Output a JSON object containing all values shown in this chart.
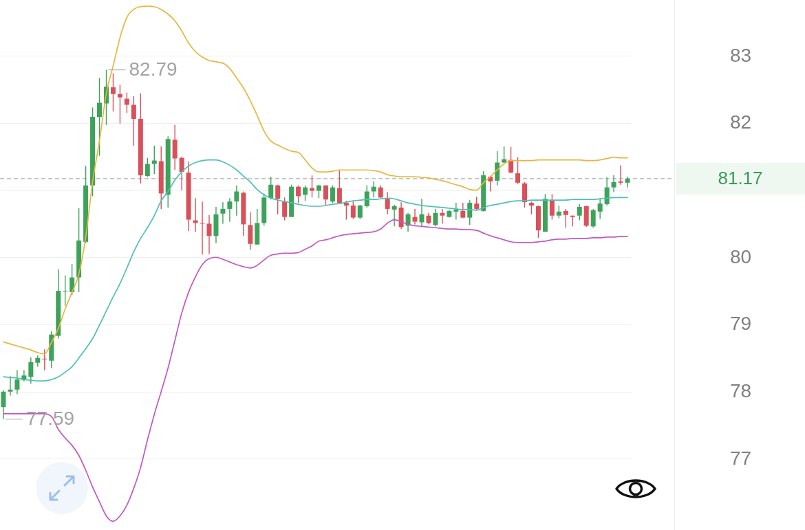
{
  "chart_data": {
    "type": "candlestick",
    "categories": [
      null,
      null,
      null,
      null,
      null,
      null,
      null,
      null,
      null,
      null,
      null,
      null,
      null,
      null,
      null,
      null,
      null,
      null,
      null,
      null,
      null,
      null,
      null,
      null,
      null,
      null,
      null,
      null,
      null,
      null,
      null,
      null,
      null,
      null,
      null,
      null,
      null,
      null,
      null,
      null,
      null,
      null,
      null,
      null,
      null,
      null,
      null,
      null,
      null,
      null,
      null,
      null,
      null,
      null,
      null,
      null,
      null,
      null,
      null,
      null,
      null,
      null,
      null,
      null,
      null,
      null,
      null,
      null,
      null,
      null,
      null,
      null,
      null,
      null,
      null,
      null,
      null,
      null,
      null,
      null,
      null,
      null,
      null,
      null,
      null,
      null,
      null,
      null,
      null,
      null,
      null,
      null
    ],
    "ohlc": [
      [
        77.77,
        78.02,
        77.59,
        78.0
      ],
      [
        78.0,
        78.23,
        77.94,
        78.03
      ],
      [
        78.03,
        78.32,
        77.96,
        78.18
      ],
      [
        78.17,
        78.32,
        78.15,
        78.24
      ],
      [
        78.22,
        78.51,
        78.12,
        78.44
      ],
      [
        78.43,
        78.54,
        78.37,
        78.5
      ],
      [
        78.49,
        78.63,
        78.32,
        78.48
      ],
      [
        78.46,
        78.9,
        78.35,
        78.85
      ],
      [
        78.83,
        79.82,
        78.79,
        79.5
      ],
      [
        79.49,
        79.73,
        79.28,
        79.5
      ],
      [
        79.48,
        79.9,
        79.44,
        79.7
      ],
      [
        79.7,
        80.73,
        79.48,
        80.25
      ],
      [
        80.23,
        81.36,
        80.21,
        81.07
      ],
      [
        81.07,
        82.23,
        80.91,
        82.09
      ],
      [
        82.09,
        82.67,
        81.51,
        82.3
      ],
      [
        82.29,
        82.79,
        81.97,
        82.54
      ],
      [
        82.53,
        82.74,
        82.17,
        82.43
      ],
      [
        82.43,
        82.57,
        81.99,
        82.38
      ],
      [
        82.36,
        82.45,
        82.15,
        82.27
      ],
      [
        82.27,
        82.4,
        81.66,
        82.06
      ],
      [
        82.06,
        82.44,
        81.1,
        81.22
      ],
      [
        81.21,
        81.48,
        81.2,
        81.39
      ],
      [
        81.39,
        81.66,
        81.24,
        81.44
      ],
      [
        81.43,
        81.65,
        80.72,
        80.95
      ],
      [
        80.93,
        81.8,
        80.74,
        81.76
      ],
      [
        81.75,
        81.97,
        81.3,
        81.47
      ],
      [
        81.48,
        81.5,
        81.0,
        81.27
      ],
      [
        81.26,
        81.43,
        80.39,
        80.56
      ],
      [
        80.55,
        80.88,
        80.38,
        80.51
      ],
      [
        80.51,
        80.83,
        80.04,
        80.5
      ],
      [
        80.5,
        80.63,
        80.05,
        80.32
      ],
      [
        80.32,
        80.75,
        80.21,
        80.64
      ],
      [
        80.65,
        80.82,
        80.5,
        80.72
      ],
      [
        80.72,
        80.88,
        80.53,
        80.83
      ],
      [
        80.83,
        81.07,
        80.62,
        80.98
      ],
      [
        80.96,
        80.98,
        80.32,
        80.49
      ],
      [
        80.48,
        80.67,
        80.11,
        80.2
      ],
      [
        80.19,
        80.72,
        80.19,
        80.51
      ],
      [
        80.51,
        80.95,
        80.47,
        80.89
      ],
      [
        80.88,
        81.2,
        80.86,
        81.08
      ],
      [
        81.07,
        81.08,
        80.64,
        80.87
      ],
      [
        80.83,
        80.89,
        80.55,
        80.6
      ],
      [
        80.6,
        81.08,
        80.6,
        81.05
      ],
      [
        81.05,
        81.07,
        80.81,
        80.91
      ],
      [
        80.93,
        81.07,
        80.84,
        81.04
      ],
      [
        81.03,
        81.22,
        80.89,
        80.99
      ],
      [
        80.99,
        81.08,
        80.88,
        81.07
      ],
      [
        81.07,
        81.07,
        80.78,
        80.86
      ],
      [
        80.83,
        81.07,
        80.81,
        81.04
      ],
      [
        81.03,
        81.29,
        80.8,
        80.81
      ],
      [
        80.81,
        80.84,
        80.56,
        80.77
      ],
      [
        80.77,
        80.83,
        80.57,
        80.59
      ],
      [
        80.59,
        80.78,
        80.57,
        80.77
      ],
      [
        80.76,
        81.07,
        80.74,
        80.98
      ],
      [
        80.98,
        81.13,
        80.89,
        81.05
      ],
      [
        81.04,
        81.07,
        80.88,
        80.89
      ],
      [
        80.87,
        80.97,
        80.64,
        80.72
      ],
      [
        80.71,
        80.78,
        80.46,
        80.76
      ],
      [
        80.74,
        80.82,
        80.42,
        80.45
      ],
      [
        80.47,
        80.66,
        80.38,
        80.64
      ],
      [
        80.6,
        80.72,
        80.49,
        80.53
      ],
      [
        80.52,
        80.87,
        80.46,
        80.64
      ],
      [
        80.62,
        80.66,
        80.49,
        80.51
      ],
      [
        80.48,
        80.72,
        80.46,
        80.66
      ],
      [
        80.66,
        80.72,
        80.5,
        80.62
      ],
      [
        80.6,
        80.7,
        80.59,
        80.69
      ],
      [
        80.68,
        80.81,
        80.56,
        80.71
      ],
      [
        80.69,
        80.81,
        80.58,
        80.59
      ],
      [
        80.59,
        80.85,
        80.48,
        80.81
      ],
      [
        80.8,
        80.9,
        80.7,
        80.72
      ],
      [
        80.69,
        81.28,
        80.68,
        81.22
      ],
      [
        81.2,
        81.21,
        80.98,
        81.13
      ],
      [
        81.14,
        81.58,
        81.07,
        81.41
      ],
      [
        81.41,
        81.65,
        81.4,
        81.46
      ],
      [
        81.45,
        81.64,
        81.25,
        81.26
      ],
      [
        81.25,
        81.49,
        81.09,
        81.11
      ],
      [
        81.1,
        81.12,
        80.74,
        80.82
      ],
      [
        80.81,
        80.83,
        80.64,
        80.77
      ],
      [
        80.76,
        80.77,
        80.29,
        80.4
      ],
      [
        80.38,
        80.94,
        80.38,
        80.87
      ],
      [
        80.85,
        80.94,
        80.56,
        80.62
      ],
      [
        80.62,
        80.77,
        80.58,
        80.68
      ],
      [
        80.69,
        80.72,
        80.44,
        80.63
      ],
      [
        80.62,
        80.62,
        80.46,
        80.6
      ],
      [
        80.62,
        80.79,
        80.55,
        80.75
      ],
      [
        80.76,
        80.77,
        80.45,
        80.47
      ],
      [
        80.46,
        80.72,
        80.44,
        80.7
      ],
      [
        80.68,
        80.88,
        80.57,
        80.8
      ],
      [
        80.79,
        81.19,
        80.77,
        81.04
      ],
      [
        81.04,
        81.22,
        80.97,
        81.12
      ],
      [
        81.13,
        81.37,
        81.08,
        81.11
      ],
      [
        81.11,
        81.2,
        81.04,
        81.17
      ]
    ],
    "colors": [
      "#3da35a",
      "#3da35a",
      "#3da35a",
      "#3da35a",
      "#3da35a",
      "#3da35a",
      "#d9505b",
      "#3da35a",
      "#3da35a",
      "#3da35a",
      "#3da35a",
      "#3da35a",
      "#3da35a",
      "#3da35a",
      "#3da35a",
      "#3da35a",
      "#d9505b",
      "#d9505b",
      "#d9505b",
      "#d9505b",
      "#d9505b",
      "#3da35a",
      "#3da35a",
      "#d9505b",
      "#3da35a",
      "#d9505b",
      "#d9505b",
      "#d9505b",
      "#d9505b",
      "#d9505b",
      "#d9505b",
      "#3da35a",
      "#3da35a",
      "#3da35a",
      "#3da35a",
      "#d9505b",
      "#d9505b",
      "#3da35a",
      "#3da35a",
      "#3da35a",
      "#d9505b",
      "#d9505b",
      "#3da35a",
      "#d9505b",
      "#3da35a",
      "#d9505b",
      "#3da35a",
      "#d9505b",
      "#3da35a",
      "#d9505b",
      "#d9505b",
      "#d9505b",
      "#3da35a",
      "#3da35a",
      "#3da35a",
      "#d9505b",
      "#d9505b",
      "#3da35a",
      "#d9505b",
      "#3da35a",
      "#d9505b",
      "#3da35a",
      "#d9505b",
      "#3da35a",
      "#d9505b",
      "#3da35a",
      "#3da35a",
      "#d9505b",
      "#3da35a",
      "#d9505b",
      "#3da35a",
      "#d9505b",
      "#3da35a",
      "#3da35a",
      "#d9505b",
      "#d9505b",
      "#d9505b",
      "#d9505b",
      "#d9505b",
      "#3da35a",
      "#d9505b",
      "#3da35a",
      "#d9505b",
      "#d9505b",
      "#3da35a",
      "#d9505b",
      "#3da35a",
      "#3da35a",
      "#3da35a",
      "#3da35a",
      "#d9505b",
      "#3da35a"
    ],
    "series": [
      {
        "type": "line",
        "color": "#e8b63c",
        "values": [
          78.74,
          78.71,
          78.68,
          78.65,
          78.62,
          78.58,
          78.56,
          78.73,
          78.94,
          79.23,
          79.48,
          79.75,
          80.3,
          81.12,
          81.73,
          82.44,
          82.85,
          83.27,
          83.57,
          83.69,
          83.73,
          83.74,
          83.73,
          83.69,
          83.62,
          83.52,
          83.37,
          83.19,
          83.06,
          82.98,
          82.93,
          82.91,
          82.89,
          82.81,
          82.67,
          82.52,
          82.33,
          82.11,
          81.88,
          81.73,
          81.67,
          81.62,
          81.58,
          81.56,
          81.45,
          81.33,
          81.27,
          81.27,
          81.28,
          81.3,
          81.3,
          81.3,
          81.3,
          81.3,
          81.29,
          81.27,
          81.23,
          81.21,
          81.2,
          81.2,
          81.2,
          81.19,
          81.18,
          81.16,
          81.14,
          81.11,
          81.08,
          81.05,
          81.01,
          81.0,
          81.11,
          81.2,
          81.3,
          81.39,
          81.44,
          81.44,
          81.44,
          81.44,
          81.45,
          81.45,
          81.45,
          81.45,
          81.45,
          81.45,
          81.45,
          81.44,
          81.44,
          81.45,
          81.47,
          81.49,
          81.48,
          81.48
        ]
      },
      {
        "type": "line",
        "color": "#4dc0b5",
        "values": [
          78.22,
          78.21,
          78.2,
          78.18,
          78.17,
          78.16,
          78.16,
          78.18,
          78.22,
          78.29,
          78.37,
          78.5,
          78.64,
          78.79,
          78.99,
          79.2,
          79.41,
          79.61,
          79.84,
          80.08,
          80.28,
          80.44,
          80.62,
          80.84,
          80.98,
          81.15,
          81.27,
          81.36,
          81.41,
          81.44,
          81.45,
          81.45,
          81.42,
          81.37,
          81.3,
          81.21,
          81.12,
          81.01,
          80.93,
          80.88,
          80.85,
          80.83,
          80.81,
          80.79,
          80.77,
          80.76,
          80.76,
          80.77,
          80.79,
          80.8,
          80.82,
          80.84,
          80.85,
          80.86,
          80.86,
          80.87,
          80.88,
          80.87,
          80.84,
          80.81,
          80.79,
          80.77,
          80.76,
          80.75,
          80.74,
          80.73,
          80.72,
          80.71,
          80.71,
          80.7,
          80.74,
          80.77,
          80.79,
          80.81,
          80.83,
          80.84,
          80.84,
          80.85,
          80.85,
          80.85,
          80.85,
          80.85,
          80.85,
          80.86,
          80.86,
          80.86,
          80.86,
          80.87,
          80.88,
          80.89,
          80.89,
          80.89
        ]
      },
      {
        "type": "line",
        "color": "#c457c4",
        "values": [
          77.67,
          77.67,
          77.67,
          77.67,
          77.67,
          77.67,
          77.67,
          77.63,
          77.44,
          77.31,
          77.2,
          77.05,
          76.83,
          76.58,
          76.36,
          76.15,
          76.07,
          76.15,
          76.31,
          76.56,
          76.87,
          77.28,
          77.66,
          78.0,
          78.35,
          78.76,
          79.17,
          79.48,
          79.71,
          79.89,
          79.98,
          80.0,
          79.97,
          79.93,
          79.89,
          79.86,
          79.84,
          79.88,
          79.96,
          80.03,
          80.05,
          80.06,
          80.06,
          80.07,
          80.12,
          80.17,
          80.24,
          80.26,
          80.29,
          80.32,
          80.34,
          80.35,
          80.36,
          80.37,
          80.38,
          80.42,
          80.51,
          80.56,
          80.53,
          80.49,
          80.47,
          80.46,
          80.45,
          80.44,
          80.43,
          80.42,
          80.42,
          80.41,
          80.41,
          80.4,
          80.36,
          80.32,
          80.29,
          80.26,
          80.23,
          80.22,
          80.22,
          80.22,
          80.23,
          80.24,
          80.26,
          80.27,
          80.27,
          80.28,
          80.28,
          80.28,
          80.29,
          80.29,
          80.3,
          80.3,
          80.31,
          80.31
        ]
      }
    ],
    "ylim": [
      75.94,
      83.83
    ],
    "yticks": [
      77,
      78,
      79,
      80,
      {
        "value": 81,
        "label": null
      },
      82,
      83
    ],
    "grid": "y",
    "ref_lines": [
      {
        "axis": "y",
        "value": 81.17,
        "label": "81.17",
        "color": "#b0b0b0",
        "line_style": "dashed"
      }
    ],
    "annotations": [
      "82.79",
      "77.59"
    ]
  }
}
